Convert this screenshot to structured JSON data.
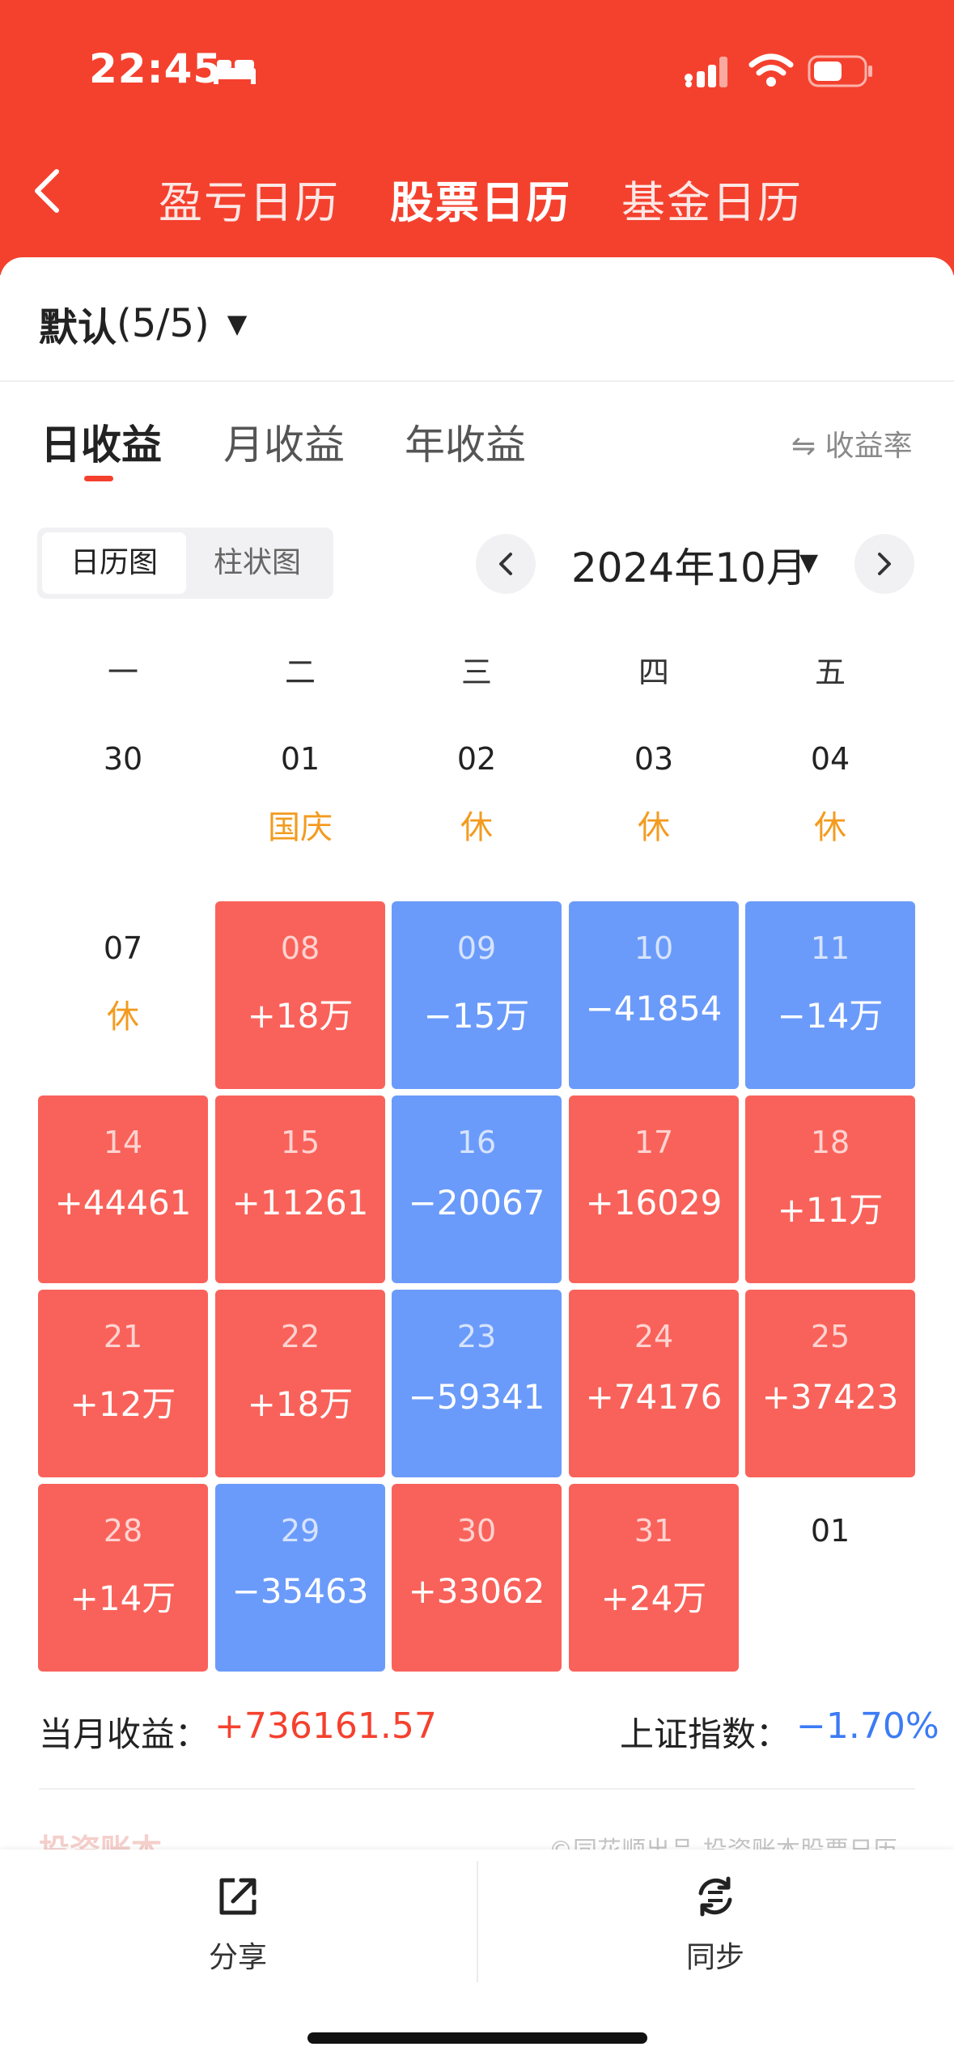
{
  "status_bar": {
    "time": "22:45"
  },
  "header": {
    "tabs": [
      {
        "label": "盈亏日历",
        "active": false
      },
      {
        "label": "股票日历",
        "active": true
      },
      {
        "label": "基金日历",
        "active": false
      }
    ]
  },
  "account": {
    "name": "默认",
    "count": "(5/5)"
  },
  "period_tabs": [
    {
      "label": "日收益",
      "active": true
    },
    {
      "label": "月收益",
      "active": false
    },
    {
      "label": "年收益",
      "active": false
    }
  ],
  "rate_toggle": "⇋ 收益率",
  "view_toggle": {
    "calendar": "日历图",
    "bar": "柱状图"
  },
  "month": "2024年10月",
  "weekdays": [
    "一",
    "二",
    "三",
    "四",
    "五"
  ],
  "calendar_rows": [
    [
      {
        "day": "30",
        "status": "plain",
        "value": "",
        "note": ""
      },
      {
        "day": "01",
        "status": "plain",
        "value": "",
        "note": "国庆"
      },
      {
        "day": "02",
        "status": "plain",
        "value": "",
        "note": "休"
      },
      {
        "day": "03",
        "status": "plain",
        "value": "",
        "note": "休"
      },
      {
        "day": "04",
        "status": "plain",
        "value": "",
        "note": "休"
      }
    ],
    [
      {
        "day": "07",
        "status": "plain",
        "value": "",
        "note": "休"
      },
      {
        "day": "08",
        "status": "up",
        "value": "+18万",
        "note": ""
      },
      {
        "day": "09",
        "status": "down",
        "value": "−15万",
        "note": ""
      },
      {
        "day": "10",
        "status": "down",
        "value": "−41854",
        "note": ""
      },
      {
        "day": "11",
        "status": "down",
        "value": "−14万",
        "note": ""
      }
    ],
    [
      {
        "day": "14",
        "status": "up",
        "value": "+44461",
        "note": ""
      },
      {
        "day": "15",
        "status": "up",
        "value": "+11261",
        "note": ""
      },
      {
        "day": "16",
        "status": "down",
        "value": "−20067",
        "note": ""
      },
      {
        "day": "17",
        "status": "up",
        "value": "+16029",
        "note": ""
      },
      {
        "day": "18",
        "status": "up",
        "value": "+11万",
        "note": ""
      }
    ],
    [
      {
        "day": "21",
        "status": "up",
        "value": "+12万",
        "note": ""
      },
      {
        "day": "22",
        "status": "up",
        "value": "+18万",
        "note": ""
      },
      {
        "day": "23",
        "status": "down",
        "value": "−59341",
        "note": ""
      },
      {
        "day": "24",
        "status": "up",
        "value": "+74176",
        "note": ""
      },
      {
        "day": "25",
        "status": "up",
        "value": "+37423",
        "note": ""
      }
    ],
    [
      {
        "day": "28",
        "status": "up",
        "value": "+14万",
        "note": ""
      },
      {
        "day": "29",
        "status": "down",
        "value": "−35463",
        "note": ""
      },
      {
        "day": "30",
        "status": "up",
        "value": "+33062",
        "note": ""
      },
      {
        "day": "31",
        "status": "up",
        "value": "+24万",
        "note": ""
      },
      {
        "day": "01",
        "status": "plain",
        "value": "",
        "note": ""
      }
    ]
  ],
  "summary": {
    "monthly_label": "当月收益：",
    "monthly_value": "+736161.57",
    "index_label": "上证指数：",
    "index_value": "−1.70%"
  },
  "brand": "投资账本",
  "footnote": "©同花顺出品-投资账本股票日历",
  "actions": {
    "share": "分享",
    "sync": "同步"
  },
  "colors": {
    "brand_red": "#f4412e",
    "gain": "#f9625a",
    "loss": "#6b9bfa",
    "holiday": "#f39b1f",
    "index_blue": "#3c7bf5"
  }
}
